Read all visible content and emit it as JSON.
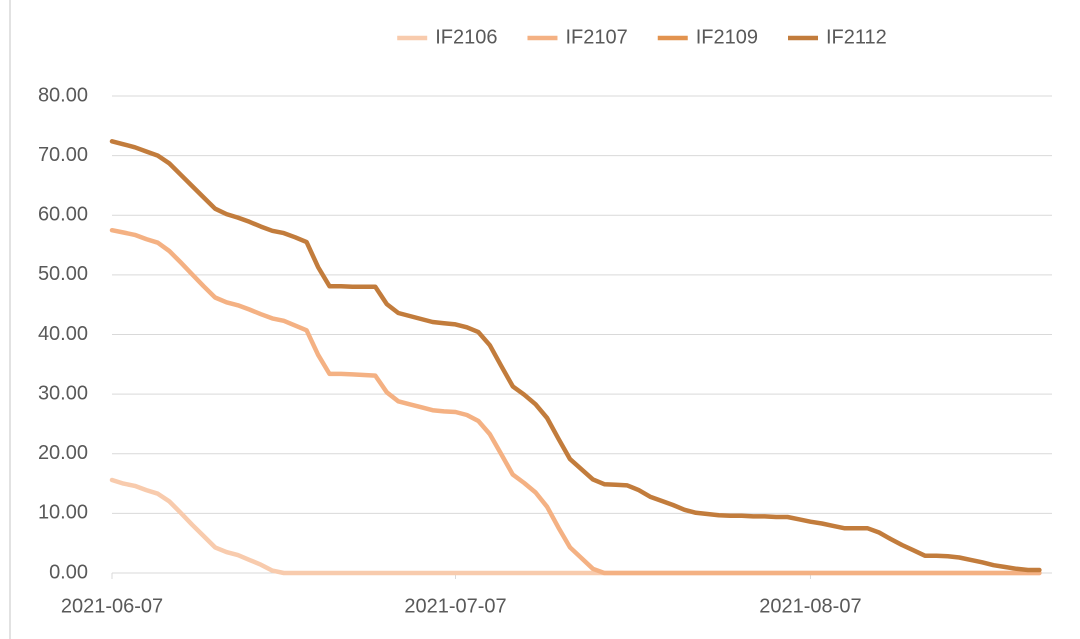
{
  "chart_data": {
    "type": "line",
    "categories": [
      "2021-06-07",
      null,
      null,
      null,
      null,
      null,
      null,
      null,
      null,
      null,
      null,
      null,
      null,
      null,
      null,
      null,
      null,
      null,
      null,
      null,
      null,
      null,
      null,
      null,
      null,
      null,
      null,
      null,
      null,
      null,
      "2021-07-07",
      null,
      null,
      null,
      null,
      null,
      null,
      null,
      null,
      null,
      null,
      null,
      null,
      null,
      null,
      null,
      null,
      null,
      null,
      null,
      null,
      null,
      null,
      null,
      null,
      null,
      null,
      null,
      null,
      null,
      null,
      "2021-08-07",
      null,
      null,
      null,
      null,
      null,
      null,
      null,
      null,
      null,
      null,
      null,
      null,
      null,
      null,
      null,
      null,
      null,
      null,
      null,
      null
    ],
    "series": [
      {
        "name": "IF2106",
        "color": "#f8cbad",
        "values": [
          15.6,
          15.0,
          14.6,
          13.9,
          13.3,
          12.0,
          10.1,
          8.1,
          6.2,
          4.3,
          3.5,
          3.0,
          2.2,
          1.4,
          0.4,
          0,
          0,
          0,
          0,
          0,
          0,
          0,
          0,
          0,
          0,
          0,
          0,
          0,
          0,
          0,
          0,
          0,
          0,
          0,
          0,
          0,
          0,
          0,
          0,
          0,
          0,
          0,
          0,
          0,
          0,
          0,
          0,
          0,
          0,
          0,
          0,
          0,
          0,
          0,
          0,
          0,
          0,
          0,
          0,
          0,
          0,
          0,
          0,
          0,
          0,
          0,
          0,
          0,
          0,
          0,
          0,
          0,
          0,
          0,
          0,
          0,
          0,
          0,
          0,
          0,
          0,
          0
        ]
      },
      {
        "name": "IF2107",
        "color": "#f4b183",
        "values": [
          57.5,
          57.1,
          56.7,
          56.0,
          55.4,
          54.0,
          52.1,
          50.1,
          48.1,
          46.2,
          45.4,
          44.9,
          44.2,
          43.4,
          42.7,
          42.3,
          41.5,
          40.7,
          36.6,
          33.4,
          33.4,
          33.3,
          33.2,
          33.1,
          30.3,
          28.8,
          28.3,
          27.8,
          27.3,
          27.1,
          27.0,
          26.5,
          25.5,
          23.3,
          19.9,
          16.5,
          15.1,
          13.5,
          11.1,
          7.6,
          4.3,
          2.5,
          0.7,
          0,
          0,
          0,
          0,
          0,
          0,
          0,
          0,
          0,
          0,
          0,
          0,
          0,
          0,
          0,
          0,
          0,
          0,
          0,
          0,
          0,
          0,
          0,
          0,
          0,
          0,
          0,
          0,
          0,
          0,
          0,
          0,
          0,
          0,
          0,
          0,
          0,
          0,
          0
        ]
      },
      {
        "name": "IF2109",
        "color": "#e2934f",
        "values": [
          null,
          null,
          null,
          null,
          null,
          null,
          null,
          null,
          null,
          null,
          null,
          null,
          null,
          null,
          null,
          null,
          null,
          null,
          null,
          null,
          null,
          null,
          null,
          null,
          null,
          null,
          null,
          null,
          null,
          null,
          null,
          null,
          null,
          null,
          null,
          null,
          null,
          null,
          null,
          null,
          null,
          null,
          null,
          null,
          null,
          null,
          null,
          null,
          null,
          null,
          null,
          null,
          null,
          null,
          null,
          null,
          null,
          null,
          null,
          null,
          null,
          null,
          null,
          null,
          null,
          null,
          null,
          null,
          null,
          null,
          null,
          null,
          null,
          null,
          null,
          null,
          null,
          null,
          null,
          null,
          null,
          null
        ]
      },
      {
        "name": "IF2112",
        "color": "#c27c3c",
        "values": [
          72.4,
          71.9,
          71.4,
          70.7,
          70.0,
          68.7,
          66.8,
          64.9,
          63.0,
          61.1,
          60.2,
          59.6,
          58.9,
          58.1,
          57.4,
          57.0,
          56.3,
          55.5,
          51.3,
          48.1,
          48.1,
          48.0,
          48.0,
          48.0,
          45.1,
          43.6,
          43.1,
          42.6,
          42.1,
          41.9,
          41.7,
          41.2,
          40.4,
          38.2,
          34.7,
          31.3,
          29.9,
          28.3,
          26.0,
          22.5,
          19.1,
          17.4,
          15.7,
          14.9,
          14.8,
          14.7,
          13.9,
          12.8,
          12.1,
          11.4,
          10.6,
          10.1,
          9.9,
          9.7,
          9.6,
          9.6,
          9.5,
          9.5,
          9.4,
          9.4,
          9.0,
          8.6,
          8.3,
          7.9,
          7.5,
          7.5,
          7.5,
          6.8,
          5.7,
          4.7,
          3.8,
          2.9,
          2.9,
          2.8,
          2.6,
          2.2,
          1.8,
          1.3,
          1.0,
          0.7,
          0.5,
          0.5
        ]
      }
    ],
    "ylim": [
      0,
      80
    ],
    "yticks": [
      {
        "value": 0,
        "label": "0.00"
      },
      {
        "value": 10,
        "label": "10.00"
      },
      {
        "value": 20,
        "label": "20.00"
      },
      {
        "value": 30,
        "label": "30.00"
      },
      {
        "value": 40,
        "label": "40.00"
      },
      {
        "value": 50,
        "label": "50.00"
      },
      {
        "value": 60,
        "label": "60.00"
      },
      {
        "value": 70,
        "label": "70.00"
      },
      {
        "value": 80,
        "label": "80.00"
      }
    ],
    "grid": true,
    "legend": "top"
  }
}
